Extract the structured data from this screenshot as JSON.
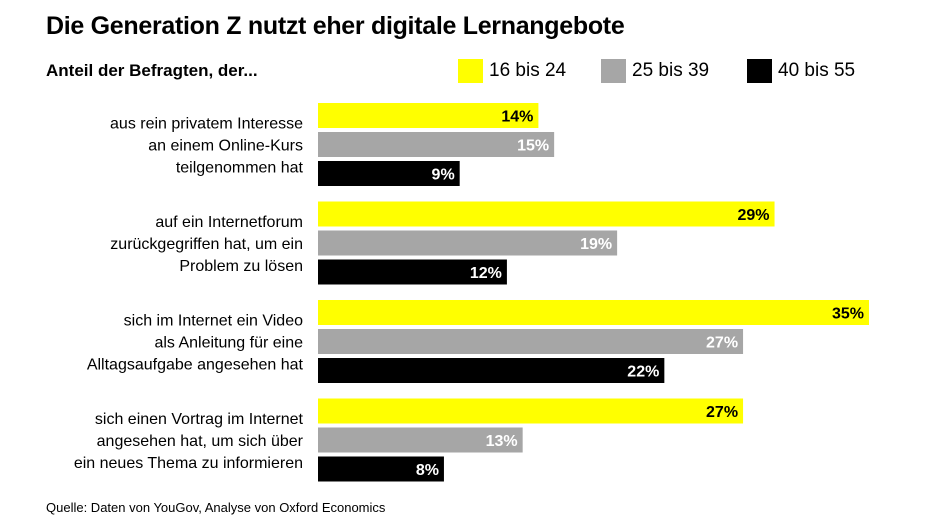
{
  "title": "Die Generation Z nutzt eher digitale Lernangebote",
  "subtitle": "Anteil der Befragten, der...",
  "source": "Quelle: Daten von YouGov, Analyse von Oxford Economics",
  "legend": [
    {
      "label": "16 bis 24",
      "color": "#ffff00"
    },
    {
      "label": "25 bis 39",
      "color": "#a6a6a6"
    },
    {
      "label": "40 bis 55",
      "color": "#000000"
    }
  ],
  "chart_data": {
    "type": "bar",
    "orientation": "horizontal",
    "title": "Die Generation Z nutzt eher digitale Lernangebote",
    "subtitle": "Anteil der Befragten, der...",
    "unit": "%",
    "categories": [
      [
        "aus rein privatem Interesse",
        "an einem Online-Kurs",
        "teilgenommen hat"
      ],
      [
        "auf ein Internetforum",
        "zurückgegriffen hat, um ein",
        "Problem zu lösen"
      ],
      [
        "sich im Internet ein Video",
        "als Anleitung für eine",
        "Alltagsaufgabe angesehen hat"
      ],
      [
        "sich einen Vortrag im Internet",
        "angesehen hat, um sich über",
        "ein neues Thema zu informieren"
      ]
    ],
    "series": [
      {
        "name": "16 bis 24",
        "color": "#ffff00",
        "label_color": "#000000",
        "values": [
          14,
          29,
          35,
          27
        ],
        "labels": [
          "14%",
          "29%",
          "35%",
          "27%"
        ]
      },
      {
        "name": "25 bis 39",
        "color": "#a6a6a6",
        "label_color": "#ffffff",
        "values": [
          15,
          19,
          27,
          13
        ],
        "labels": [
          "15%",
          "19%",
          "27%",
          "13%"
        ]
      },
      {
        "name": "40 bis 55",
        "color": "#000000",
        "label_color": "#ffffff",
        "values": [
          9,
          12,
          22,
          8
        ],
        "labels": [
          "9%",
          "12%",
          "22%",
          "8%"
        ]
      }
    ],
    "xlim": [
      0,
      35
    ],
    "grid": false,
    "legend_position": "top-right"
  }
}
